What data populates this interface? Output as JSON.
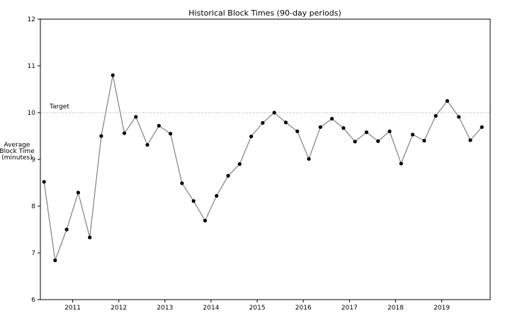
{
  "chart_data": {
    "type": "line",
    "title": "Historical Block Times (90-day periods)",
    "xlabel": "",
    "ylabel": [
      "Average",
      "Block Time",
      "(minutes)"
    ],
    "ylim": [
      6,
      12
    ],
    "xlim": [
      2010.3,
      2020.05
    ],
    "yticks": [
      6,
      7,
      8,
      9,
      10,
      11,
      12
    ],
    "xticks": [
      2011,
      2012,
      2013,
      2014,
      2015,
      2016,
      2017,
      2018,
      2019
    ],
    "grid": false,
    "line_color": "#808080",
    "marker_color": "#000000",
    "reference_line": {
      "y": 10,
      "label": "Target",
      "color": "#aaaaaa"
    },
    "x": [
      2010.38,
      2010.62,
      2010.87,
      2011.12,
      2011.37,
      2011.62,
      2011.87,
      2012.12,
      2012.37,
      2012.62,
      2012.87,
      2013.12,
      2013.37,
      2013.62,
      2013.87,
      2014.12,
      2014.37,
      2014.62,
      2014.87,
      2015.12,
      2015.37,
      2015.62,
      2015.87,
      2016.12,
      2016.37,
      2016.62,
      2016.87,
      2017.12,
      2017.37,
      2017.62,
      2017.87,
      2018.12,
      2018.37,
      2018.62,
      2018.87,
      2019.12,
      2019.37,
      2019.62,
      2019.87
    ],
    "y": [
      8.52,
      6.84,
      7.5,
      8.29,
      7.33,
      9.5,
      10.8,
      9.56,
      9.91,
      9.31,
      9.72,
      9.55,
      8.49,
      8.11,
      7.69,
      8.22,
      8.65,
      8.9,
      9.49,
      9.78,
      10.0,
      9.79,
      9.6,
      9.01,
      9.69,
      9.87,
      9.67,
      9.38,
      9.58,
      9.39,
      9.6,
      8.91,
      9.53,
      9.4,
      9.93,
      10.25,
      9.91,
      9.41,
      9.69
    ]
  }
}
